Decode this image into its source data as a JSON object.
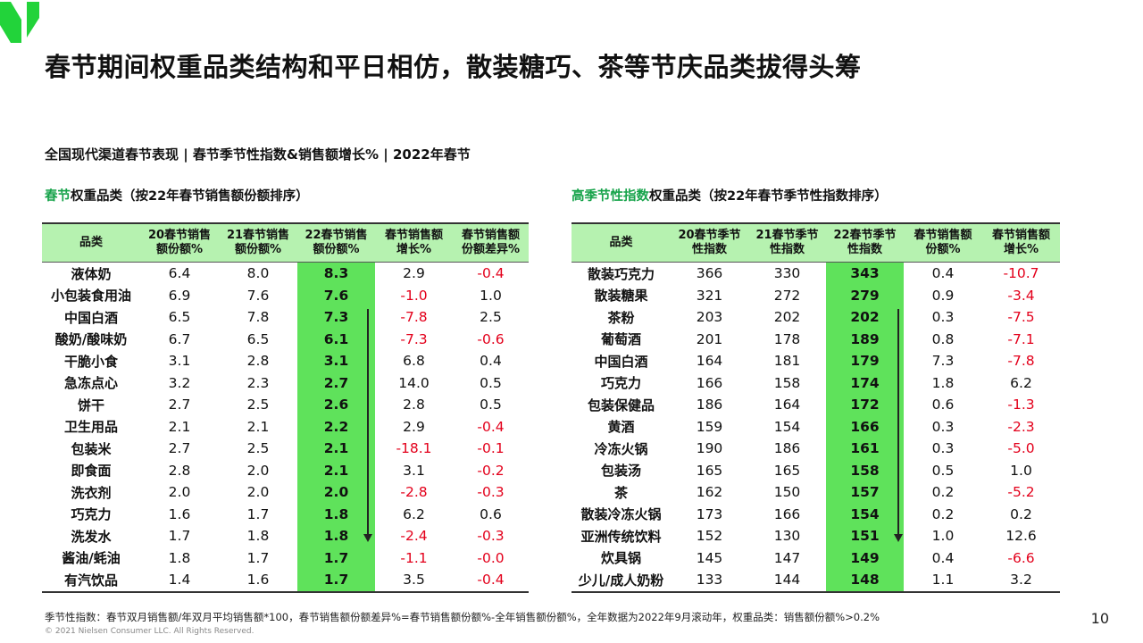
{
  "title": "春节期间权重品类结构和平日相仿，散装糖巧、茶等节庆品类拔得头筹",
  "subtitle": "全国现代渠道春节表现 | 春节季节性指数&销售额增长% | 2022年春节",
  "colors": {
    "brand_green": "#16a34a",
    "header_bg": "#b6f2b0",
    "highlight_col": "#5fe25b",
    "negative": "#e3001b"
  },
  "left": {
    "section_title_hl": "春节",
    "section_title_rest": "权重品类（按22年春节销售额份额排序）",
    "headers": [
      "品类",
      "20春节销售\n额份额%",
      "21春节销售\n额份额%",
      "22春节销售\n额份额%",
      "春节销售额\n增长%",
      "春节销售额\n份额差异%"
    ],
    "rows": [
      [
        "液体奶",
        "6.4",
        "8.0",
        "8.3",
        "2.9",
        "-0.4"
      ],
      [
        "小包装食用油",
        "6.9",
        "7.6",
        "7.6",
        "-1.0",
        "1.0"
      ],
      [
        "中国白酒",
        "6.5",
        "7.8",
        "7.3",
        "-7.8",
        "2.5"
      ],
      [
        "酸奶/酸味奶",
        "6.7",
        "6.5",
        "6.1",
        "-7.3",
        "-0.6"
      ],
      [
        "干脆小食",
        "3.1",
        "2.8",
        "3.1",
        "6.8",
        "0.4"
      ],
      [
        "急冻点心",
        "3.2",
        "2.3",
        "2.7",
        "14.0",
        "0.5"
      ],
      [
        "饼干",
        "2.7",
        "2.5",
        "2.6",
        "2.8",
        "0.5"
      ],
      [
        "卫生用品",
        "2.1",
        "2.1",
        "2.2",
        "2.9",
        "-0.4"
      ],
      [
        "包装米",
        "2.7",
        "2.5",
        "2.1",
        "-18.1",
        "-0.1"
      ],
      [
        "即食面",
        "2.8",
        "2.0",
        "2.1",
        "3.1",
        "-0.2"
      ],
      [
        "洗衣剂",
        "2.0",
        "2.0",
        "2.0",
        "-2.8",
        "-0.3"
      ],
      [
        "巧克力",
        "1.6",
        "1.7",
        "1.8",
        "6.2",
        "0.6"
      ],
      [
        "洗发水",
        "1.7",
        "1.8",
        "1.8",
        "-2.4",
        "-0.3"
      ],
      [
        "酱油/蚝油",
        "1.8",
        "1.7",
        "1.7",
        "-1.1",
        "-0.0"
      ],
      [
        "有汽饮品",
        "1.4",
        "1.6",
        "1.7",
        "3.5",
        "-0.4"
      ]
    ]
  },
  "right": {
    "section_title_hl": "高季节性指数",
    "section_title_rest": "权重品类（按22年春节季节性指数排序）",
    "headers": [
      "品类",
      "20春节季节\n性指数",
      "21春节季节\n性指数",
      "22春节季节\n性指数",
      "春节销售额\n份额%",
      "春节销售额\n增长%"
    ],
    "rows": [
      [
        "散装巧克力",
        "366",
        "330",
        "343",
        "0.4",
        "-10.7"
      ],
      [
        "散装糖果",
        "321",
        "272",
        "279",
        "0.9",
        "-3.4"
      ],
      [
        "茶粉",
        "203",
        "202",
        "202",
        "0.3",
        "-7.5"
      ],
      [
        "葡萄酒",
        "201",
        "178",
        "189",
        "0.8",
        "-7.1"
      ],
      [
        "中国白酒",
        "164",
        "181",
        "179",
        "7.3",
        "-7.8"
      ],
      [
        "巧克力",
        "166",
        "158",
        "174",
        "1.8",
        "6.2"
      ],
      [
        "包装保健品",
        "186",
        "164",
        "172",
        "0.6",
        "-1.3"
      ],
      [
        "黄酒",
        "159",
        "154",
        "166",
        "0.3",
        "-2.3"
      ],
      [
        "冷冻火锅",
        "190",
        "186",
        "161",
        "0.3",
        "-5.0"
      ],
      [
        "包装汤",
        "165",
        "165",
        "158",
        "0.5",
        "1.0"
      ],
      [
        "茶",
        "162",
        "150",
        "157",
        "0.2",
        "-5.2"
      ],
      [
        "散装冷冻火锅",
        "173",
        "166",
        "154",
        "0.2",
        "0.2"
      ],
      [
        "亚洲传统饮料",
        "152",
        "130",
        "151",
        "1.0",
        "12.6"
      ],
      [
        "炊具锅",
        "145",
        "147",
        "149",
        "0.4",
        "-6.6"
      ],
      [
        "少儿/成人奶粉",
        "133",
        "144",
        "148",
        "1.1",
        "3.2"
      ]
    ]
  },
  "footnote": "季节性指数：春节双月销售额/年双月平均销售额*100，春节销售额份额差异%=春节销售额份额%-全年销售额份额%，全年数据为2022年9月滚动年，权重品类：销售额份额%>0.2%",
  "copyright": "© 2021 Nielsen Consumer LLC. All Rights Reserved.",
  "page_number": "10"
}
